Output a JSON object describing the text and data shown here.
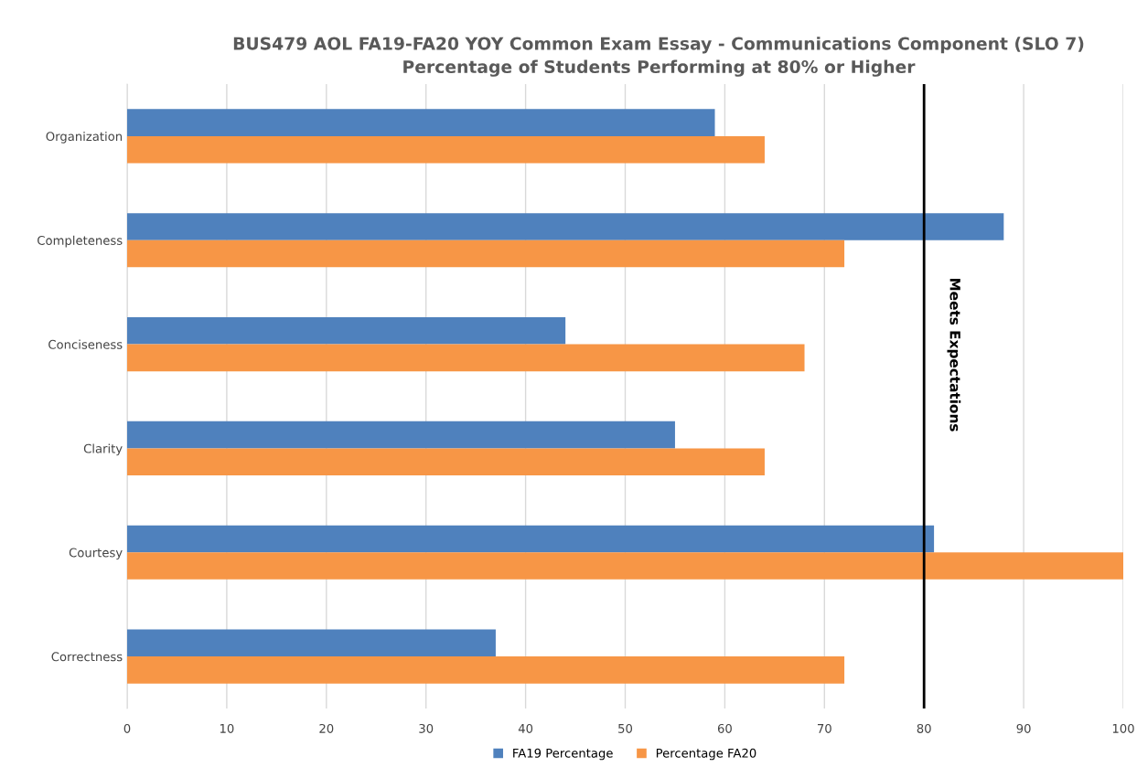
{
  "chart_data": {
    "type": "bar",
    "orientation": "horizontal",
    "title": "BUS479 AOL FA19-FA20 YOY Common Exam Essay - Communications Component (SLO 7)\nPercentage of Students Performing at 80% or Higher",
    "categories": [
      "Organization",
      "Completeness",
      "Conciseness",
      "Clarity",
      "Courtesy",
      "Correctness"
    ],
    "series": [
      {
        "name": "FA19 Percentage",
        "color": "#4f81bd",
        "values": [
          59,
          88,
          44,
          55,
          81,
          37
        ]
      },
      {
        "name": "Percentage FA20",
        "color": "#f79646",
        "values": [
          64,
          72,
          68,
          64,
          100,
          72
        ]
      }
    ],
    "xlim": [
      0,
      100
    ],
    "xticks": [
      0,
      10,
      20,
      30,
      40,
      50,
      60,
      70,
      80,
      90,
      100
    ],
    "ref_lines": [
      {
        "axis": "x",
        "value": 80,
        "label": "Meets Expectations",
        "color": "#000000"
      }
    ],
    "grid": "x",
    "legend": "bottom"
  }
}
